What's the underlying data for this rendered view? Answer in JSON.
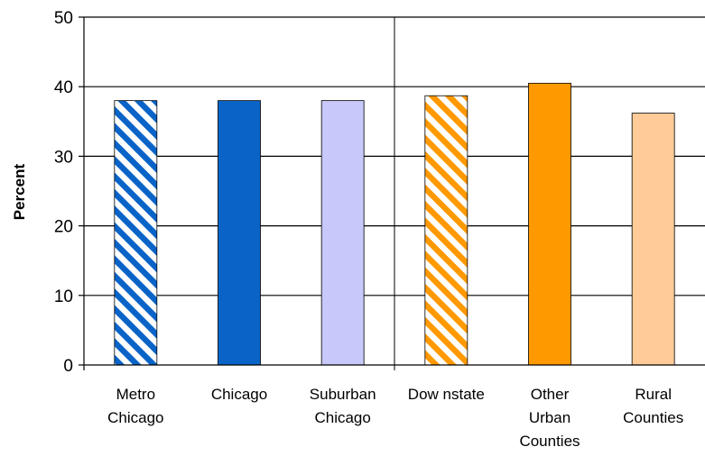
{
  "chart_data": {
    "type": "bar",
    "title": "",
    "xlabel": "",
    "ylabel": "Percent",
    "ylim": [
      0,
      50
    ],
    "yticks": [
      0,
      10,
      20,
      30,
      40,
      50
    ],
    "grid": true,
    "categories": [
      [
        "Metro",
        "Chicago"
      ],
      [
        "Chicago"
      ],
      [
        "Suburban",
        "Chicago"
      ],
      [
        "Dow nstate"
      ],
      [
        "Other",
        "Urban",
        "Counties"
      ],
      [
        "Rural",
        "Counties"
      ]
    ],
    "values": [
      38,
      38,
      38,
      38.7,
      40.5,
      36.2
    ],
    "bar_styles": [
      {
        "fill": "#0a64c8",
        "pattern": "diagonal-stripes"
      },
      {
        "fill": "#0a64c8",
        "pattern": "solid"
      },
      {
        "fill": "#c8c8fa",
        "pattern": "solid"
      },
      {
        "fill": "#ff9900",
        "pattern": "diagonal-stripes"
      },
      {
        "fill": "#ff9900",
        "pattern": "solid"
      },
      {
        "fill": "#ffcc99",
        "pattern": "solid"
      }
    ],
    "group_divider_after_category": 3
  }
}
